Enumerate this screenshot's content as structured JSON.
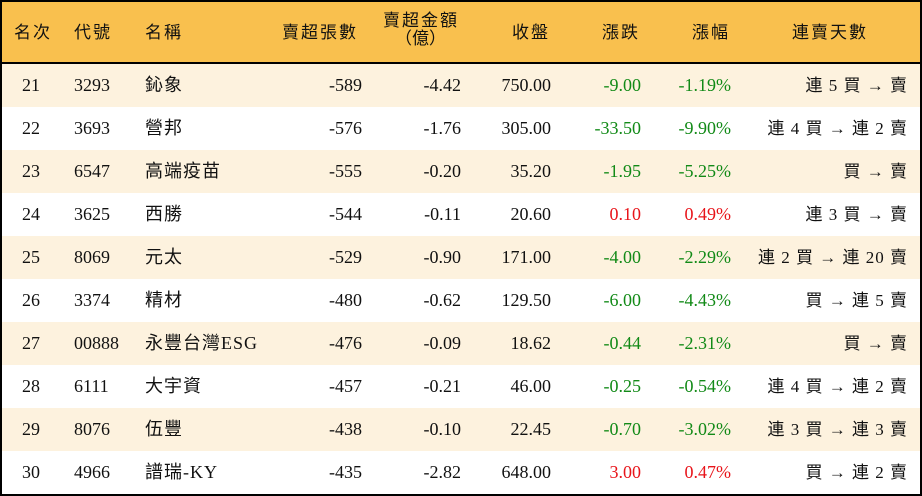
{
  "colors": {
    "header_bg": "#F9C04E",
    "row_alt_bg": "#FDF2DE",
    "row_bg": "#FFFFFF",
    "up": "#E8141A",
    "down": "#128A17",
    "border": "#000000"
  },
  "headers": {
    "rank": "名次",
    "code": "代號",
    "name": "名稱",
    "shares": "賣超張數",
    "amount_line1": "賣超金額",
    "amount_line2": "（億）",
    "close": "收盤",
    "change": "漲跌",
    "pct": "漲幅",
    "streak": "連賣天數"
  },
  "rows": [
    {
      "rank": "21",
      "code": "3293",
      "name": "鈊象",
      "shares": "-589",
      "amount": "-4.42",
      "close": "750.00",
      "change": "-9.00",
      "pct": "-1.19%",
      "dir": "down",
      "streak": "連 5 買 → 賣"
    },
    {
      "rank": "22",
      "code": "3693",
      "name": "營邦",
      "shares": "-576",
      "amount": "-1.76",
      "close": "305.00",
      "change": "-33.50",
      "pct": "-9.90%",
      "dir": "down",
      "streak": "連 4 買 → 連 2 賣"
    },
    {
      "rank": "23",
      "code": "6547",
      "name": "高端疫苗",
      "shares": "-555",
      "amount": "-0.20",
      "close": "35.20",
      "change": "-1.95",
      "pct": "-5.25%",
      "dir": "down",
      "streak": "買 → 賣"
    },
    {
      "rank": "24",
      "code": "3625",
      "name": "西勝",
      "shares": "-544",
      "amount": "-0.11",
      "close": "20.60",
      "change": "0.10",
      "pct": "0.49%",
      "dir": "up",
      "streak": "連 3 買 → 賣"
    },
    {
      "rank": "25",
      "code": "8069",
      "name": "元太",
      "shares": "-529",
      "amount": "-0.90",
      "close": "171.00",
      "change": "-4.00",
      "pct": "-2.29%",
      "dir": "down",
      "streak": "連 2 買 → 連 20 賣"
    },
    {
      "rank": "26",
      "code": "3374",
      "name": "精材",
      "shares": "-480",
      "amount": "-0.62",
      "close": "129.50",
      "change": "-6.00",
      "pct": "-4.43%",
      "dir": "down",
      "streak": "買 → 連 5 賣"
    },
    {
      "rank": "27",
      "code": "00888",
      "name": "永豐台灣ESG",
      "shares": "-476",
      "amount": "-0.09",
      "close": "18.62",
      "change": "-0.44",
      "pct": "-2.31%",
      "dir": "down",
      "streak": "買 → 賣"
    },
    {
      "rank": "28",
      "code": "6111",
      "name": "大宇資",
      "shares": "-457",
      "amount": "-0.21",
      "close": "46.00",
      "change": "-0.25",
      "pct": "-0.54%",
      "dir": "down",
      "streak": "連 4 買 → 連 2 賣"
    },
    {
      "rank": "29",
      "code": "8076",
      "name": "伍豐",
      "shares": "-438",
      "amount": "-0.10",
      "close": "22.45",
      "change": "-0.70",
      "pct": "-3.02%",
      "dir": "down",
      "streak": "連 3 買 → 連 3 賣"
    },
    {
      "rank": "30",
      "code": "4966",
      "name": "譜瑞-KY",
      "shares": "-435",
      "amount": "-2.82",
      "close": "648.00",
      "change": "3.00",
      "pct": "0.47%",
      "dir": "up",
      "streak": "買 → 連 2 賣"
    }
  ]
}
